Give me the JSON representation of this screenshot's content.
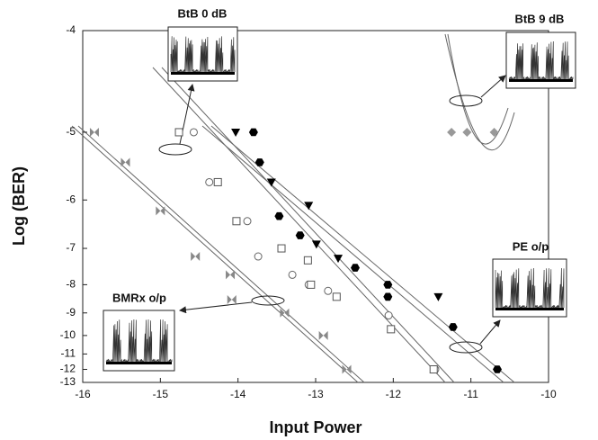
{
  "chart_data": {
    "type": "scatter",
    "x_label": "Input Power",
    "y_label": "Log (BER)",
    "annotations": [
      "BtB 0 dB",
      "BtB 9 dB",
      "PE o/p",
      "BMRx o/p"
    ],
    "xlim": [
      -16,
      -10
    ],
    "xticks": [
      -16,
      -15,
      -14,
      -13,
      -12,
      -11,
      -10
    ],
    "ylim": [
      -4,
      -13
    ],
    "yticks": [
      -4,
      -5,
      -6,
      -7,
      -8,
      -9,
      -10,
      -11,
      -12,
      -13
    ],
    "y_scale": "reciprocal",
    "series": [
      {
        "marker": "bowtie",
        "color": "#888888",
        "x": [
          -15.85,
          -15.45,
          -15.0,
          -14.55,
          -14.1,
          -14.08,
          -13.4,
          -12.9,
          -12.6
        ],
        "values": [
          -5.0,
          -5.4,
          -6.2,
          -7.2,
          -7.7,
          -8.5,
          -9.0,
          -10.0,
          -12.0
        ]
      },
      {
        "marker": "circle-open",
        "color": "#666666",
        "x": [
          -14.57,
          -14.37,
          -13.88,
          -13.74,
          -13.3,
          -13.09,
          -12.84,
          -12.06,
          -11.46
        ],
        "values": [
          -5.0,
          -5.7,
          -6.4,
          -7.2,
          -7.7,
          -8.0,
          -8.2,
          -9.1,
          -12.0
        ]
      },
      {
        "marker": "square-open",
        "color": "#555555",
        "x": [
          -14.76,
          -14.26,
          -14.02,
          -13.44,
          -13.1,
          -13.06,
          -12.73,
          -12.03,
          -11.48
        ],
        "values": [
          -5.0,
          -5.7,
          -6.4,
          -7.0,
          -7.3,
          -8.0,
          -8.4,
          -9.7,
          -12.0
        ]
      },
      {
        "marker": "hexagon",
        "color": "#000000",
        "x": [
          -13.8,
          -13.72,
          -13.47,
          -13.2,
          -12.49,
          -12.07,
          -12.07,
          -11.23,
          -10.66
        ],
        "values": [
          -5.0,
          -5.4,
          -6.3,
          -6.7,
          -7.5,
          -8.0,
          -8.4,
          -9.6,
          -12.0
        ]
      },
      {
        "marker": "triangle-down",
        "color": "#000000",
        "x": [
          -14.03,
          -13.57,
          -13.09,
          -12.99,
          -12.71,
          -11.42
        ],
        "values": [
          -5.0,
          -5.7,
          -6.1,
          -6.9,
          -7.25,
          -8.4
        ]
      },
      {
        "marker": "diamond",
        "color": "#999999",
        "x": [
          -11.25,
          -11.05,
          -10.7
        ],
        "values": [
          -5.0,
          -5.0,
          -5.0
        ]
      }
    ]
  }
}
